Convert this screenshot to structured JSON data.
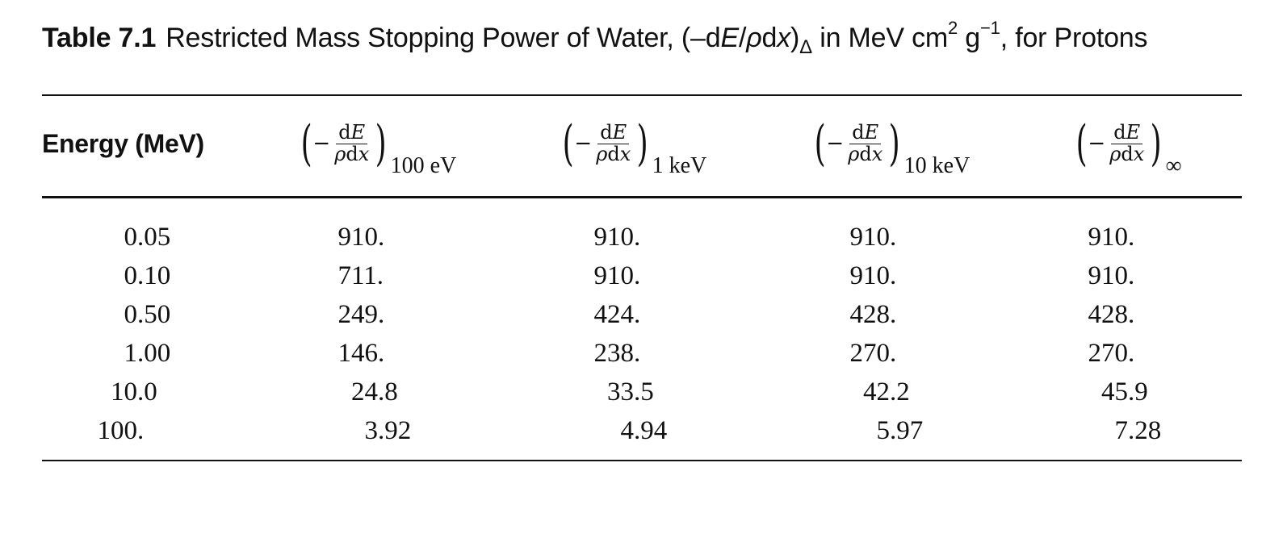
{
  "caption": {
    "label": "Table 7.1",
    "text_before_formula": "Restricted Mass Stopping Power of Water, (–d",
    "formula_E": "E",
    "formula_slash": "/",
    "formula_rho": "ρ",
    "formula_d": "d",
    "formula_x": "x",
    "formula_close": ")",
    "formula_sub": "Δ",
    "units_prefix": " in MeV cm",
    "units_sup1": "2",
    "units_g": " g",
    "units_sup2": "−1",
    "text_after": ", for Protons"
  },
  "table": {
    "energy_header": "Energy (MeV)",
    "fraction": {
      "open_paren": "(",
      "minus": "−",
      "numerator_d": "d",
      "numerator_E": "E",
      "denominator_rho": "ρ",
      "denominator_d": "d",
      "denominator_x": "x",
      "close_paren": ")"
    },
    "column_subscripts": [
      "100 eV",
      "1 keV",
      "10 keV",
      "∞"
    ],
    "rows": [
      {
        "energy": "0.05",
        "values": [
          "910.",
          "910.",
          "910.",
          "910."
        ]
      },
      {
        "energy": "0.10",
        "values": [
          "711.",
          "910.",
          "910.",
          "910."
        ]
      },
      {
        "energy": "0.50",
        "values": [
          "249.",
          "424.",
          "428.",
          "428."
        ]
      },
      {
        "energy": "1.00",
        "values": [
          "146.",
          "238.",
          "270.",
          "270."
        ]
      },
      {
        "energy": "10.0",
        "values": [
          "24.8",
          "33.5",
          "42.2",
          "45.9"
        ]
      },
      {
        "energy": "100.",
        "values": [
          "3.92",
          "4.94",
          "5.97",
          "7.28"
        ]
      }
    ]
  }
}
